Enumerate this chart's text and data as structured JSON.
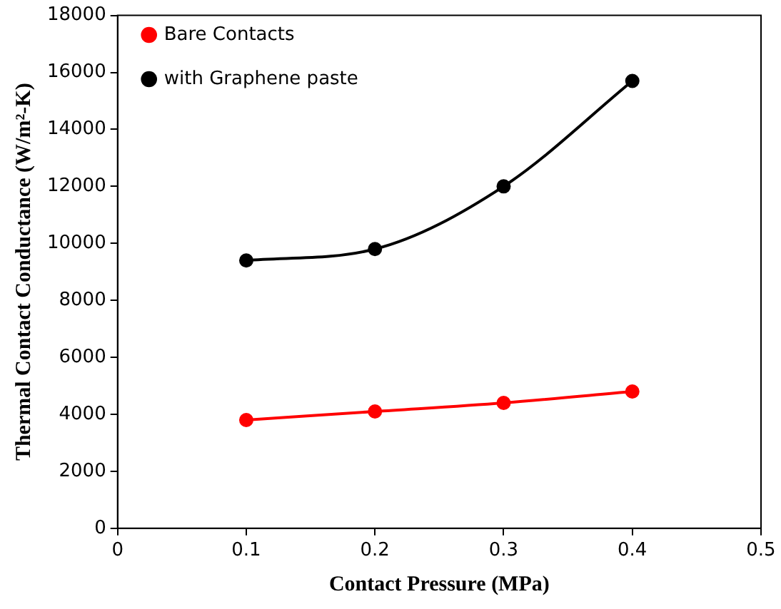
{
  "chart_data": {
    "type": "line",
    "xlabel": "Contact Pressure (MPa)",
    "ylabel": "Thermal Contact Conductance (W/m²-K)",
    "x": [
      0.1,
      0.2,
      0.3,
      0.4
    ],
    "series": [
      {
        "name": "Bare Contacts",
        "color": "#ff0000",
        "values": [
          3800,
          4100,
          4400,
          4800
        ]
      },
      {
        "name": "with Graphene paste",
        "color": "#000000",
        "values": [
          9400,
          9800,
          12000,
          15700
        ]
      }
    ],
    "xlim": [
      0,
      0.5
    ],
    "xticks": [
      0,
      0.1,
      0.2,
      0.3,
      0.4,
      0.5
    ],
    "ylim": [
      0,
      18000
    ],
    "yticks": [
      0,
      2000,
      4000,
      6000,
      8000,
      10000,
      12000,
      14000,
      16000,
      18000
    ],
    "grid": false,
    "legend": "top left",
    "marker": "circle",
    "line_style": "solid"
  }
}
